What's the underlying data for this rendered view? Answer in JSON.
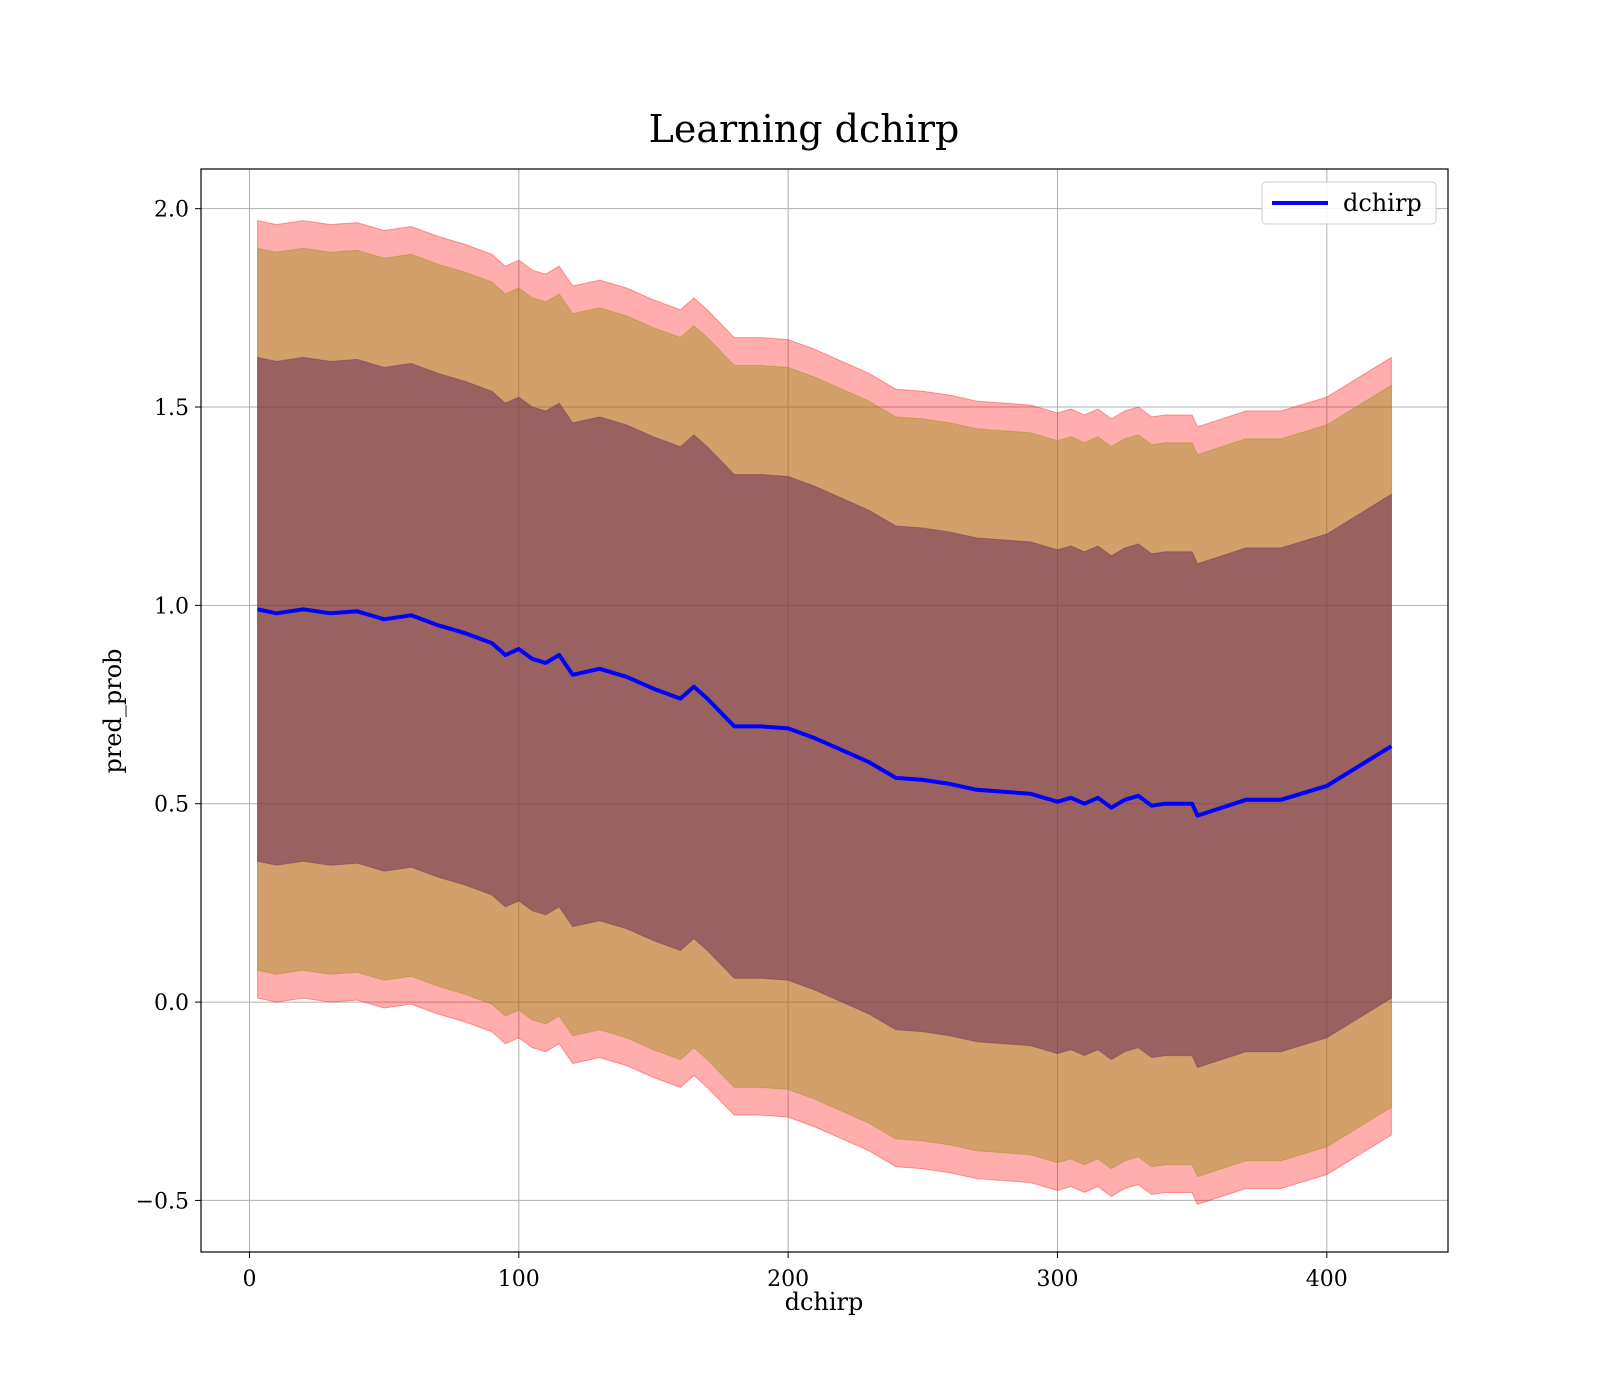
{
  "chart_data": {
    "type": "line",
    "title": "Learning dchirp",
    "xlabel": "dchirp",
    "ylabel": "pred_prob",
    "xlim": [
      -18,
      445
    ],
    "ylim": [
      -0.63,
      2.1
    ],
    "xticks": [
      0,
      100,
      200,
      300,
      400
    ],
    "yticks": [
      -0.5,
      0.0,
      0.5,
      1.0,
      1.5,
      2.0
    ],
    "xtick_labels": [
      "0",
      "100",
      "200",
      "300",
      "400"
    ],
    "ytick_labels": [
      "−0.5",
      "0.0",
      "0.5",
      "1.0",
      "1.5",
      "2.0"
    ],
    "grid": true,
    "legend": {
      "position": "top-right",
      "entries": [
        "dchirp"
      ]
    },
    "colors": {
      "line": "#0000ff",
      "band_outer": "#ff0000",
      "band_middle": "#8b8b00",
      "band_inner": "#6a2f5a"
    },
    "series": [
      {
        "name": "dchirp",
        "x": [
          3,
          10,
          20,
          30,
          40,
          50,
          60,
          70,
          80,
          90,
          95,
          100,
          105,
          110,
          115,
          120,
          130,
          140,
          150,
          160,
          165,
          170,
          180,
          190,
          200,
          210,
          220,
          230,
          240,
          250,
          260,
          270,
          280,
          290,
          300,
          305,
          310,
          315,
          320,
          325,
          330,
          335,
          340,
          345,
          350,
          352,
          370,
          383,
          400,
          424
        ],
        "y": [
          0.99,
          0.98,
          0.99,
          0.98,
          0.985,
          0.965,
          0.975,
          0.95,
          0.93,
          0.905,
          0.875,
          0.89,
          0.865,
          0.855,
          0.875,
          0.825,
          0.84,
          0.82,
          0.79,
          0.765,
          0.795,
          0.765,
          0.695,
          0.695,
          0.69,
          0.665,
          0.635,
          0.605,
          0.565,
          0.56,
          0.55,
          0.535,
          0.53,
          0.525,
          0.505,
          0.515,
          0.5,
          0.515,
          0.49,
          0.51,
          0.52,
          0.495,
          0.5,
          0.5,
          0.5,
          0.47,
          0.51,
          0.51,
          0.545,
          0.645
        ],
        "band_outer_half_width": 0.98,
        "band_middle_half_width": 0.91,
        "band_inner_half_width": 0.635
      }
    ]
  }
}
